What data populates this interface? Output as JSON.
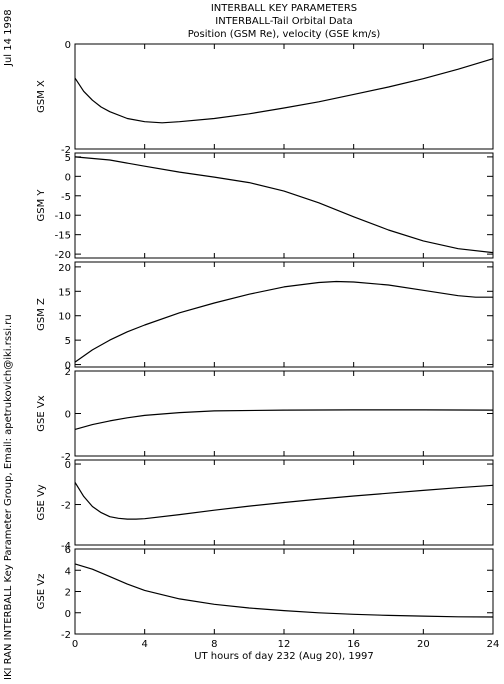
{
  "header": {
    "line1": "INTERBALL KEY PARAMETERS",
    "line2": "INTERBALL-Tail Orbital Data",
    "line3": "Position (GSM Re), velocity (GSE km/s)"
  },
  "side": {
    "date": "Jul 14 1998",
    "credit": "IKI RAN INTERBALL Key Parameter Group, Email: apetrukovich@iki.rssi.ru"
  },
  "chart_data": {
    "type": "line",
    "xlabel": "UT hours of day 232 (Aug 20), 1997",
    "xlim": [
      0,
      24
    ],
    "xticks": [
      0,
      4,
      8,
      12,
      16,
      20,
      24
    ],
    "xtick_labels": [
      "0",
      "4",
      "8",
      "12",
      "16",
      "20",
      "24"
    ],
    "panels": [
      {
        "ylabel": "GSM X",
        "ylim": [
          -2,
          0
        ],
        "yticks": [
          -2,
          0
        ],
        "x": [
          0,
          0.5,
          1,
          1.5,
          2,
          3,
          4,
          5,
          6,
          8,
          10,
          12,
          14,
          16,
          18,
          20,
          22,
          24
        ],
        "y": [
          -0.65,
          -0.9,
          -1.07,
          -1.2,
          -1.29,
          -1.42,
          -1.48,
          -1.5,
          -1.48,
          -1.42,
          -1.33,
          -1.22,
          -1.1,
          -0.96,
          -0.82,
          -0.66,
          -0.48,
          -0.28
        ]
      },
      {
        "ylabel": "GSM Y",
        "ylim": [
          -21,
          6
        ],
        "yticks": [
          -20,
          -15,
          -10,
          -5,
          0,
          5
        ],
        "x": [
          0,
          2,
          4,
          6,
          8,
          10,
          12,
          14,
          16,
          18,
          20,
          22,
          24
        ],
        "y": [
          5.0,
          4.2,
          2.6,
          1.1,
          -0.2,
          -1.6,
          -3.8,
          -6.8,
          -10.4,
          -13.8,
          -16.6,
          -18.6,
          -19.6
        ]
      },
      {
        "ylabel": "GSM Z",
        "ylim": [
          -0.5,
          21
        ],
        "yticks": [
          0,
          5,
          10,
          15,
          20
        ],
        "x": [
          0,
          1,
          2,
          3,
          4,
          6,
          8,
          10,
          12,
          14,
          15,
          16,
          18,
          20,
          22,
          23,
          24
        ],
        "y": [
          0.5,
          3.0,
          5.0,
          6.7,
          8.1,
          10.6,
          12.6,
          14.4,
          15.9,
          16.8,
          17.0,
          16.9,
          16.3,
          15.2,
          14.1,
          13.8,
          13.8
        ]
      },
      {
        "ylabel": "GSE Vx",
        "ylim": [
          -2,
          2
        ],
        "yticks": [
          -2,
          0,
          2
        ],
        "x": [
          0,
          1,
          2,
          3,
          4,
          6,
          8,
          12,
          16,
          20,
          24
        ],
        "y": [
          -0.75,
          -0.52,
          -0.35,
          -0.2,
          -0.09,
          0.04,
          0.12,
          0.16,
          0.17,
          0.17,
          0.16
        ]
      },
      {
        "ylabel": "GSE Vy",
        "ylim": [
          -4,
          0.2
        ],
        "yticks": [
          -4,
          -2,
          0
        ],
        "x": [
          0,
          0.5,
          1,
          1.5,
          2,
          2.5,
          3,
          3.5,
          4,
          6,
          8,
          10,
          12,
          14,
          16,
          18,
          20,
          22,
          24
        ],
        "y": [
          -0.9,
          -1.6,
          -2.1,
          -2.4,
          -2.6,
          -2.68,
          -2.72,
          -2.72,
          -2.7,
          -2.5,
          -2.28,
          -2.08,
          -1.9,
          -1.73,
          -1.58,
          -1.44,
          -1.3,
          -1.17,
          -1.05
        ]
      },
      {
        "ylabel": "GSE Vz",
        "ylim": [
          -2,
          6
        ],
        "yticks": [
          -2,
          0,
          2,
          4,
          6
        ],
        "x": [
          0,
          1,
          2,
          3,
          4,
          6,
          8,
          10,
          12,
          14,
          16,
          18,
          20,
          22,
          24
        ],
        "y": [
          4.6,
          4.1,
          3.4,
          2.7,
          2.1,
          1.3,
          0.8,
          0.45,
          0.2,
          0.0,
          -0.15,
          -0.25,
          -0.32,
          -0.38,
          -0.4
        ]
      }
    ]
  }
}
